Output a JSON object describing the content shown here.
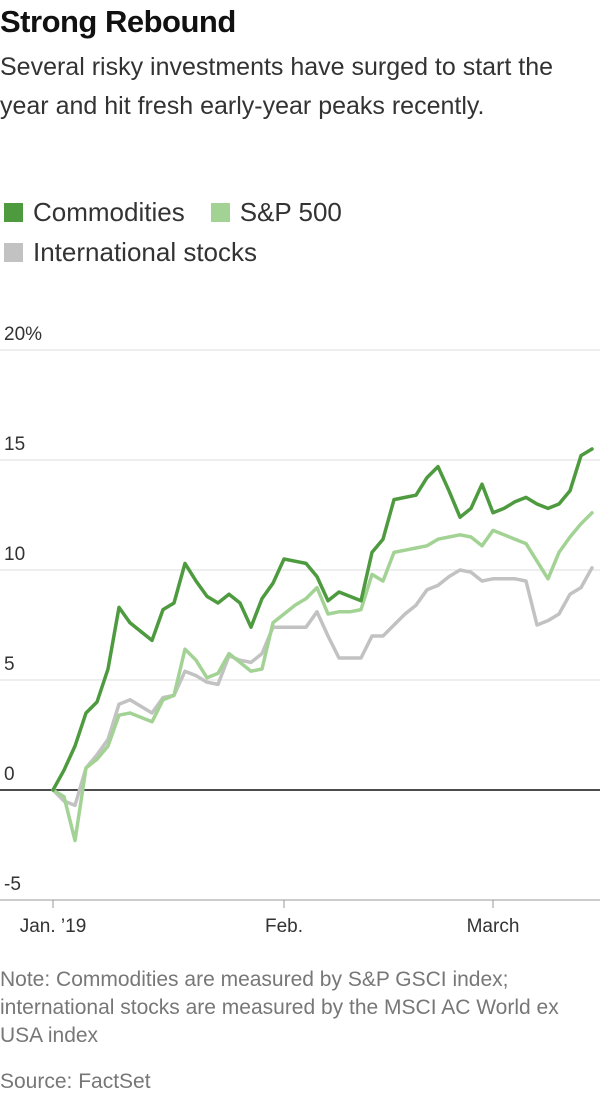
{
  "chart_data": {
    "type": "line",
    "title": "Strong Rebound",
    "subtitle": "Several risky investments have surged to start the year and hit fresh early-year peaks recently.",
    "note": "Note: Commodities are measured by S&P GSCI index; international stocks are measured by the MSCI AC World ex USA index",
    "source": "Source: FactSet",
    "categories": [
      "Jan. ’19",
      null,
      null,
      null,
      null,
      null,
      null,
      null,
      null,
      null,
      null,
      null,
      null,
      null,
      null,
      null,
      null,
      null,
      null,
      null,
      null,
      "Feb.",
      null,
      null,
      null,
      null,
      null,
      null,
      null,
      null,
      null,
      null,
      null,
      null,
      null,
      null,
      null,
      null,
      null,
      null,
      "March",
      null,
      null,
      null,
      null,
      null,
      null,
      null,
      null,
      null
    ],
    "series": [
      {
        "name": "Commodities",
        "color": "#4e9b3f",
        "values": [
          0,
          0.9,
          2.0,
          3.5,
          4.0,
          5.5,
          8.3,
          7.6,
          7.2,
          6.8,
          8.2,
          8.5,
          10.3,
          9.5,
          8.8,
          8.5,
          8.9,
          8.5,
          7.4,
          8.7,
          9.4,
          10.5,
          10.4,
          10.3,
          9.7,
          8.6,
          9.0,
          8.8,
          8.6,
          10.8,
          11.4,
          13.2,
          13.3,
          13.4,
          14.2,
          14.7,
          13.6,
          12.4,
          12.8,
          13.9,
          12.6,
          12.8,
          13.1,
          13.3,
          13.0,
          12.8,
          13.0,
          13.6,
          15.2,
          15.5
        ]
      },
      {
        "name": "S&P 500",
        "color": "#a3d394",
        "values": [
          0,
          -0.3,
          -2.3,
          1.0,
          1.4,
          2.0,
          3.4,
          3.5,
          3.3,
          3.1,
          4.1,
          4.3,
          6.4,
          5.9,
          5.1,
          5.3,
          6.2,
          5.8,
          5.4,
          5.5,
          7.6,
          8.0,
          8.4,
          8.7,
          9.2,
          8.0,
          8.1,
          8.1,
          8.2,
          9.8,
          9.5,
          10.8,
          10.9,
          11.0,
          11.1,
          11.4,
          11.5,
          11.6,
          11.5,
          11.1,
          11.8,
          11.6,
          11.4,
          11.2,
          10.4,
          9.6,
          10.8,
          11.5,
          12.1,
          12.6
        ]
      },
      {
        "name": "International stocks",
        "color": "#c2c2c2",
        "values": [
          0,
          -0.5,
          -0.7,
          1.0,
          1.6,
          2.3,
          3.9,
          4.1,
          3.8,
          3.5,
          4.2,
          4.3,
          5.4,
          5.2,
          4.9,
          4.8,
          6.1,
          5.9,
          5.8,
          6.2,
          7.4,
          7.4,
          7.4,
          7.4,
          8.1,
          7.0,
          6.0,
          6.0,
          6.0,
          7.0,
          7.0,
          7.5,
          8.0,
          8.4,
          9.1,
          9.3,
          9.7,
          10.0,
          9.9,
          9.5,
          9.6,
          9.6,
          9.6,
          9.5,
          7.5,
          7.7,
          8.0,
          8.9,
          9.2,
          10.1
        ]
      }
    ],
    "ylim": [
      -5,
      20
    ],
    "yticks": [
      -5,
      0,
      5,
      10,
      15,
      {
        "value": 20,
        "label": "20%"
      }
    ],
    "grid": true
  }
}
